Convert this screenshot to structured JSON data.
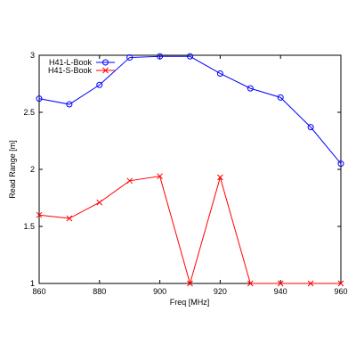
{
  "chart_data": {
    "type": "line",
    "title": "",
    "xlabel": "Freq [MHz]",
    "ylabel": "Read Range [m]",
    "xlim": [
      860,
      960
    ],
    "ylim": [
      1,
      3
    ],
    "x_ticks": [
      "860",
      "880",
      "900",
      "920",
      "940",
      "960"
    ],
    "y_ticks": [
      "1",
      "1.5",
      "2",
      "2.5",
      "3"
    ],
    "grid": false,
    "legend_position": "top-left",
    "x": [
      860,
      870,
      880,
      890,
      900,
      910,
      920,
      930,
      940,
      950,
      960
    ],
    "series": [
      {
        "name": "H41-L-Book",
        "color": "#0000ff",
        "marker": "circle",
        "values": [
          2.62,
          2.57,
          2.74,
          2.98,
          2.99,
          2.99,
          2.84,
          2.71,
          2.63,
          2.37,
          2.05
        ]
      },
      {
        "name": "H41-S-Book",
        "color": "#ff0000",
        "marker": "x",
        "values": [
          1.6,
          1.57,
          1.71,
          1.9,
          1.94,
          1.0,
          1.93,
          1.0,
          1.0,
          1.0,
          1.0
        ]
      }
    ]
  }
}
